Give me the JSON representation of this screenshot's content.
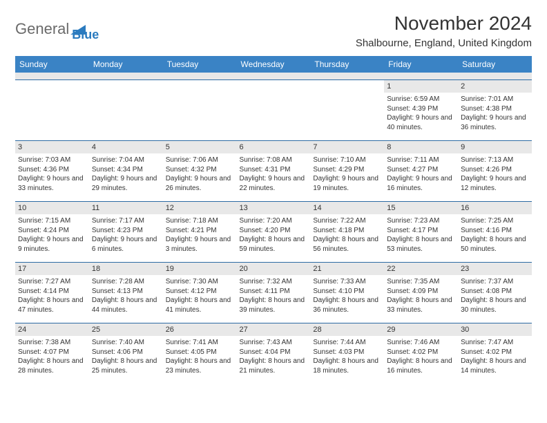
{
  "logo": {
    "text1": "General",
    "text2": "Blue"
  },
  "title": "November 2024",
  "location": "Shalbourne, England, United Kingdom",
  "colors": {
    "header_bg": "#3a83c5",
    "header_text": "#ffffff",
    "stripe_bg": "#e8e8e8",
    "border": "#2b6aa3",
    "text": "#333333",
    "logo_gray": "#6a6a6a",
    "logo_blue": "#2b7bbf"
  },
  "day_headers": [
    "Sunday",
    "Monday",
    "Tuesday",
    "Wednesday",
    "Thursday",
    "Friday",
    "Saturday"
  ],
  "weeks": [
    [
      {
        "n": "",
        "sr": "",
        "ss": "",
        "dl": ""
      },
      {
        "n": "",
        "sr": "",
        "ss": "",
        "dl": ""
      },
      {
        "n": "",
        "sr": "",
        "ss": "",
        "dl": ""
      },
      {
        "n": "",
        "sr": "",
        "ss": "",
        "dl": ""
      },
      {
        "n": "",
        "sr": "",
        "ss": "",
        "dl": ""
      },
      {
        "n": "1",
        "sr": "Sunrise: 6:59 AM",
        "ss": "Sunset: 4:39 PM",
        "dl": "Daylight: 9 hours and 40 minutes."
      },
      {
        "n": "2",
        "sr": "Sunrise: 7:01 AM",
        "ss": "Sunset: 4:38 PM",
        "dl": "Daylight: 9 hours and 36 minutes."
      }
    ],
    [
      {
        "n": "3",
        "sr": "Sunrise: 7:03 AM",
        "ss": "Sunset: 4:36 PM",
        "dl": "Daylight: 9 hours and 33 minutes."
      },
      {
        "n": "4",
        "sr": "Sunrise: 7:04 AM",
        "ss": "Sunset: 4:34 PM",
        "dl": "Daylight: 9 hours and 29 minutes."
      },
      {
        "n": "5",
        "sr": "Sunrise: 7:06 AM",
        "ss": "Sunset: 4:32 PM",
        "dl": "Daylight: 9 hours and 26 minutes."
      },
      {
        "n": "6",
        "sr": "Sunrise: 7:08 AM",
        "ss": "Sunset: 4:31 PM",
        "dl": "Daylight: 9 hours and 22 minutes."
      },
      {
        "n": "7",
        "sr": "Sunrise: 7:10 AM",
        "ss": "Sunset: 4:29 PM",
        "dl": "Daylight: 9 hours and 19 minutes."
      },
      {
        "n": "8",
        "sr": "Sunrise: 7:11 AM",
        "ss": "Sunset: 4:27 PM",
        "dl": "Daylight: 9 hours and 16 minutes."
      },
      {
        "n": "9",
        "sr": "Sunrise: 7:13 AM",
        "ss": "Sunset: 4:26 PM",
        "dl": "Daylight: 9 hours and 12 minutes."
      }
    ],
    [
      {
        "n": "10",
        "sr": "Sunrise: 7:15 AM",
        "ss": "Sunset: 4:24 PM",
        "dl": "Daylight: 9 hours and 9 minutes."
      },
      {
        "n": "11",
        "sr": "Sunrise: 7:17 AM",
        "ss": "Sunset: 4:23 PM",
        "dl": "Daylight: 9 hours and 6 minutes."
      },
      {
        "n": "12",
        "sr": "Sunrise: 7:18 AM",
        "ss": "Sunset: 4:21 PM",
        "dl": "Daylight: 9 hours and 3 minutes."
      },
      {
        "n": "13",
        "sr": "Sunrise: 7:20 AM",
        "ss": "Sunset: 4:20 PM",
        "dl": "Daylight: 8 hours and 59 minutes."
      },
      {
        "n": "14",
        "sr": "Sunrise: 7:22 AM",
        "ss": "Sunset: 4:18 PM",
        "dl": "Daylight: 8 hours and 56 minutes."
      },
      {
        "n": "15",
        "sr": "Sunrise: 7:23 AM",
        "ss": "Sunset: 4:17 PM",
        "dl": "Daylight: 8 hours and 53 minutes."
      },
      {
        "n": "16",
        "sr": "Sunrise: 7:25 AM",
        "ss": "Sunset: 4:16 PM",
        "dl": "Daylight: 8 hours and 50 minutes."
      }
    ],
    [
      {
        "n": "17",
        "sr": "Sunrise: 7:27 AM",
        "ss": "Sunset: 4:14 PM",
        "dl": "Daylight: 8 hours and 47 minutes."
      },
      {
        "n": "18",
        "sr": "Sunrise: 7:28 AM",
        "ss": "Sunset: 4:13 PM",
        "dl": "Daylight: 8 hours and 44 minutes."
      },
      {
        "n": "19",
        "sr": "Sunrise: 7:30 AM",
        "ss": "Sunset: 4:12 PM",
        "dl": "Daylight: 8 hours and 41 minutes."
      },
      {
        "n": "20",
        "sr": "Sunrise: 7:32 AM",
        "ss": "Sunset: 4:11 PM",
        "dl": "Daylight: 8 hours and 39 minutes."
      },
      {
        "n": "21",
        "sr": "Sunrise: 7:33 AM",
        "ss": "Sunset: 4:10 PM",
        "dl": "Daylight: 8 hours and 36 minutes."
      },
      {
        "n": "22",
        "sr": "Sunrise: 7:35 AM",
        "ss": "Sunset: 4:09 PM",
        "dl": "Daylight: 8 hours and 33 minutes."
      },
      {
        "n": "23",
        "sr": "Sunrise: 7:37 AM",
        "ss": "Sunset: 4:08 PM",
        "dl": "Daylight: 8 hours and 30 minutes."
      }
    ],
    [
      {
        "n": "24",
        "sr": "Sunrise: 7:38 AM",
        "ss": "Sunset: 4:07 PM",
        "dl": "Daylight: 8 hours and 28 minutes."
      },
      {
        "n": "25",
        "sr": "Sunrise: 7:40 AM",
        "ss": "Sunset: 4:06 PM",
        "dl": "Daylight: 8 hours and 25 minutes."
      },
      {
        "n": "26",
        "sr": "Sunrise: 7:41 AM",
        "ss": "Sunset: 4:05 PM",
        "dl": "Daylight: 8 hours and 23 minutes."
      },
      {
        "n": "27",
        "sr": "Sunrise: 7:43 AM",
        "ss": "Sunset: 4:04 PM",
        "dl": "Daylight: 8 hours and 21 minutes."
      },
      {
        "n": "28",
        "sr": "Sunrise: 7:44 AM",
        "ss": "Sunset: 4:03 PM",
        "dl": "Daylight: 8 hours and 18 minutes."
      },
      {
        "n": "29",
        "sr": "Sunrise: 7:46 AM",
        "ss": "Sunset: 4:02 PM",
        "dl": "Daylight: 8 hours and 16 minutes."
      },
      {
        "n": "30",
        "sr": "Sunrise: 7:47 AM",
        "ss": "Sunset: 4:02 PM",
        "dl": "Daylight: 8 hours and 14 minutes."
      }
    ]
  ]
}
